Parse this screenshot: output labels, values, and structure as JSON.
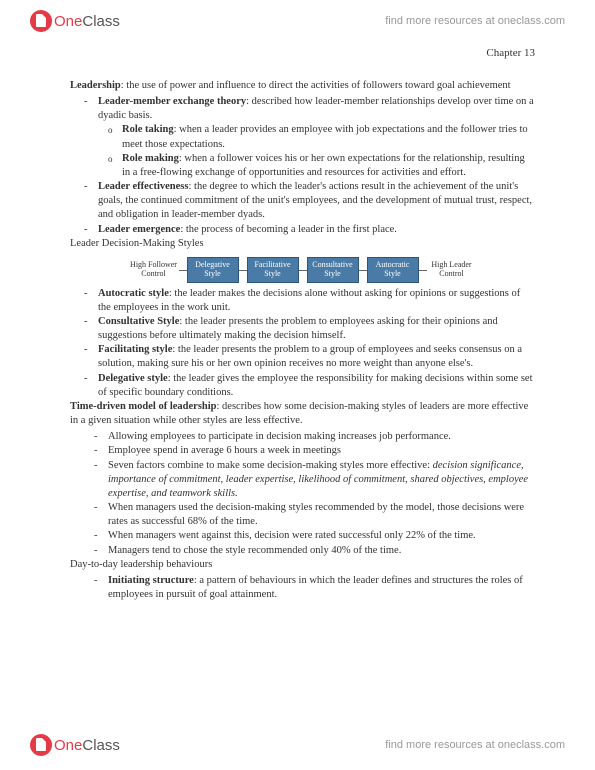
{
  "header": {
    "logo_one": "One",
    "logo_class": "Class",
    "link": "find more resources at oneclass.com"
  },
  "chapter": "Chapter 13",
  "p1_bold": "Leadership",
  "p1_rest": ": the use of power and influence to direct the activities of followers toward goal achievement",
  "b1_bold": "Leader-member exchange theory",
  "b1_rest": ": described how leader-member relationships develop over time on a dyadic basis.",
  "b1a_bold": "Role taking",
  "b1a_rest": ": when a leader provides an employee with job expectations and the follower tries to meet those expectations.",
  "b1b_bold": "Role making",
  "b1b_rest": ": when a follower voices his or her own expectations for the relationship, resulting in a free-flowing exchange of opportunities and resources for activities and effort.",
  "b2_bold": "Leader effectiveness",
  "b2_rest": ": the degree to which the leader's actions result in the achievement of the unit's goals, the continued commitment of the unit's employees, and the development of mutual trust, respect, and obligation in leader-member dyads.",
  "b3_bold": "Leader emergence",
  "b3_rest": ": the process of becoming a leader in the first place.",
  "h2": "Leader Decision-Making Styles",
  "diagram": {
    "left_label": "High Follower Control",
    "right_label": "High Leader Control",
    "boxes": [
      "Delegative Style",
      "Facilitative Style",
      "Consultative Style",
      "Autocratic Style"
    ],
    "box_bg": "#4a7ba6",
    "box_border": "#2c5578"
  },
  "c1_bold": "Autocratic style",
  "c1_rest": ": the leader makes the decisions alone without asking for opinions or suggestions of the employees in the work unit.",
  "c2_bold": "Consultative Style",
  "c2_rest": ": the leader presents the problem to employees asking for their opinions and suggestions before ultimately making the decision himself.",
  "c3_bold": "Facilitating style",
  "c3_rest": ": the leader presents the problem to a group of employees and seeks consensus on a solution, making sure his or her own opinion receives no more weight than anyone else's.",
  "c4_bold": "Delegative style",
  "c4_rest": ": the leader gives the employee the responsibility for making decisions within some set of specific boundary conditions.",
  "p3_bold": "Time-driven model of leadership",
  "p3_rest": ": describes how some decision-making styles of leaders are more effective in a given situation while other styles are less effective.",
  "d1": "Allowing employees to participate in decision making increases job performance.",
  "d2": "Employee spend in average 6 hours a week in meetings",
  "d3a": "Seven factors combine to make some decision-making styles more effective: ",
  "d3b": "decision significance, importance of commitment, leader expertise, likelihood of commitment, shared objectives, employee expertise, and teamwork skills.",
  "d4": "When managers used the decision-making styles recommended by the model, those decisions were rates as successful 68% of the time.",
  "d5": "When managers went against this, decision were rated successful only 22% of the time.",
  "d6": "Managers tend to chose the style recommended only 40% of the time.",
  "h3": "Day-to-day leadership behaviours",
  "e1_bold": "Initiating structure",
  "e1_rest": ": a pattern of behaviours in which the leader defines and structures the roles of employees in pursuit of goal attainment."
}
